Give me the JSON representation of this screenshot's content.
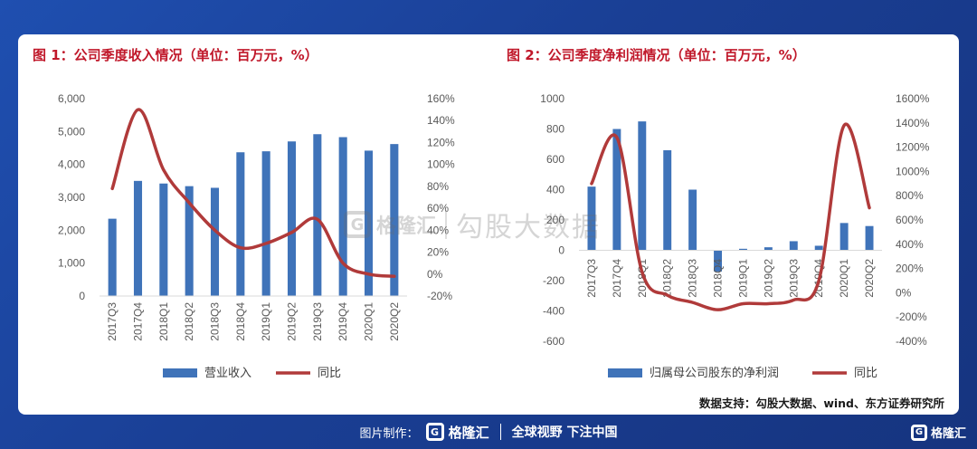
{
  "chart_data": [
    {
      "type": "bar",
      "title": "图 1：公司季度收入情况（单位：百万元，%）",
      "categories": [
        "2017Q3",
        "2017Q4",
        "2018Q1",
        "2018Q2",
        "2018Q3",
        "2018Q4",
        "2019Q1",
        "2019Q2",
        "2019Q3",
        "2019Q4",
        "2020Q1",
        "2020Q2"
      ],
      "series": [
        {
          "name": "营业收入",
          "type": "bar",
          "axis": "left",
          "color": "#3f73b9",
          "values": [
            2350,
            3500,
            3420,
            3340,
            3290,
            4370,
            4400,
            4700,
            4920,
            4830,
            4420,
            4620
          ]
        },
        {
          "name": "同比",
          "type": "line",
          "axis": "right",
          "color": "#b03a3a",
          "values": [
            78,
            150,
            95,
            65,
            40,
            24,
            28,
            38,
            50,
            10,
            0,
            -2
          ]
        }
      ],
      "left_axis": {
        "min": 0,
        "max": 6000,
        "ticks": [
          "0",
          "1,000",
          "2,000",
          "3,000",
          "4,000",
          "5,000",
          "6,000"
        ]
      },
      "right_axis": {
        "min": -20,
        "max": 160,
        "ticks": [
          "-20%",
          "0%",
          "20%",
          "40%",
          "60%",
          "80%",
          "100%",
          "120%",
          "140%",
          "160%"
        ]
      },
      "legend": "bottom"
    },
    {
      "type": "bar",
      "title": "图 2：公司季度净利润情况（单位：百万元，%）",
      "categories": [
        "2017Q3",
        "2017Q4",
        "2018Q1",
        "2018Q2",
        "2018Q3",
        "2018Q4",
        "2019Q1",
        "2019Q2",
        "2019Q3",
        "2019Q4",
        "2020Q1",
        "2020Q2"
      ],
      "series": [
        {
          "name": "归属母公司股东的净利润",
          "type": "bar",
          "axis": "left",
          "color": "#3f73b9",
          "values": [
            420,
            800,
            850,
            660,
            400,
            -140,
            10,
            20,
            60,
            30,
            180,
            160
          ]
        },
        {
          "name": "同比",
          "type": "line",
          "axis": "right",
          "color": "#b03a3a",
          "values": [
            900,
            1280,
            170,
            -20,
            -80,
            -140,
            -90,
            -90,
            -60,
            100,
            1380,
            700
          ]
        }
      ],
      "left_axis": {
        "min": -600,
        "max": 1000,
        "ticks": [
          "-600",
          "-400",
          "-200",
          "0",
          "200",
          "400",
          "600",
          "800",
          "1000"
        ]
      },
      "right_axis": {
        "min": -400,
        "max": 1600,
        "ticks": [
          "-400%",
          "-200%",
          "0%",
          "200%",
          "400%",
          "600%",
          "800%",
          "1000%",
          "1200%",
          "1400%",
          "1600%"
        ]
      },
      "legend": "bottom"
    }
  ],
  "source": "数据支持：勾股大数据、wind、东方证券研究所",
  "watermark": {
    "brand": "格隆汇",
    "text": "勾股大数据"
  },
  "footer": {
    "made_by": "图片制作：",
    "brand": "格隆汇",
    "slogan": "全球视野 下注中国"
  },
  "corner_brand": "格隆汇"
}
